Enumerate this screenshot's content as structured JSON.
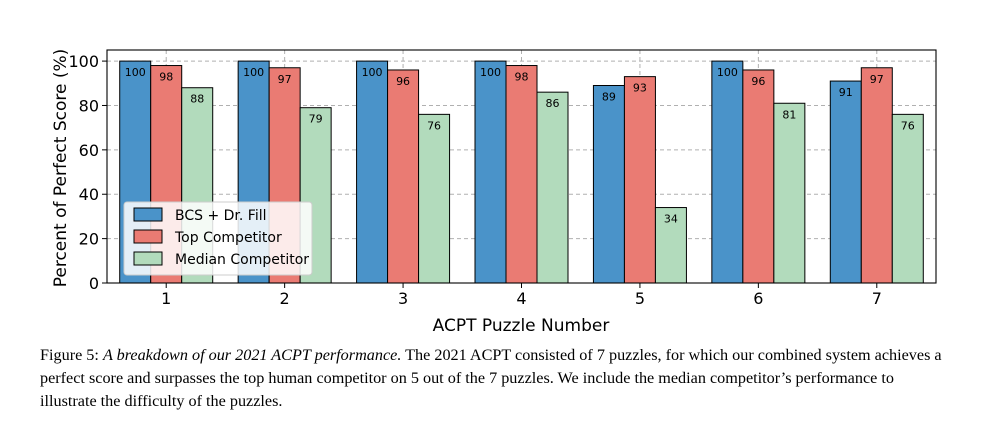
{
  "chart_data": {
    "type": "bar",
    "xlabel": "ACPT Puzzle Number",
    "ylabel": "Percent of Perfect Score (%)",
    "categories": [
      "1",
      "2",
      "3",
      "4",
      "5",
      "6",
      "7"
    ],
    "ylim": [
      0,
      105
    ],
    "yticks": [
      0,
      20,
      40,
      60,
      80,
      100
    ],
    "grid": true,
    "legend_position": "lower-left",
    "series": [
      {
        "name": "BCS + Dr. Fill",
        "color": "#4a93c9",
        "values": [
          100,
          100,
          100,
          100,
          89,
          100,
          91
        ]
      },
      {
        "name": "Top Competitor",
        "color": "#ea7b73",
        "values": [
          98,
          97,
          96,
          98,
          93,
          96,
          97
        ]
      },
      {
        "name": "Median Competitor",
        "color": "#b2dbbc",
        "values": [
          88,
          79,
          76,
          86,
          34,
          81,
          76
        ]
      }
    ]
  },
  "caption": {
    "label": "Figure 5:",
    "title": "A breakdown of our 2021 ACPT performance.",
    "text": "The 2021 ACPT consisted of 7 puzzles, for which our combined system achieves a perfect score and surpasses the top human competitor on 5 out of the 7 puzzles. We include the median competitor’s performance to illustrate the difficulty of the puzzles."
  }
}
